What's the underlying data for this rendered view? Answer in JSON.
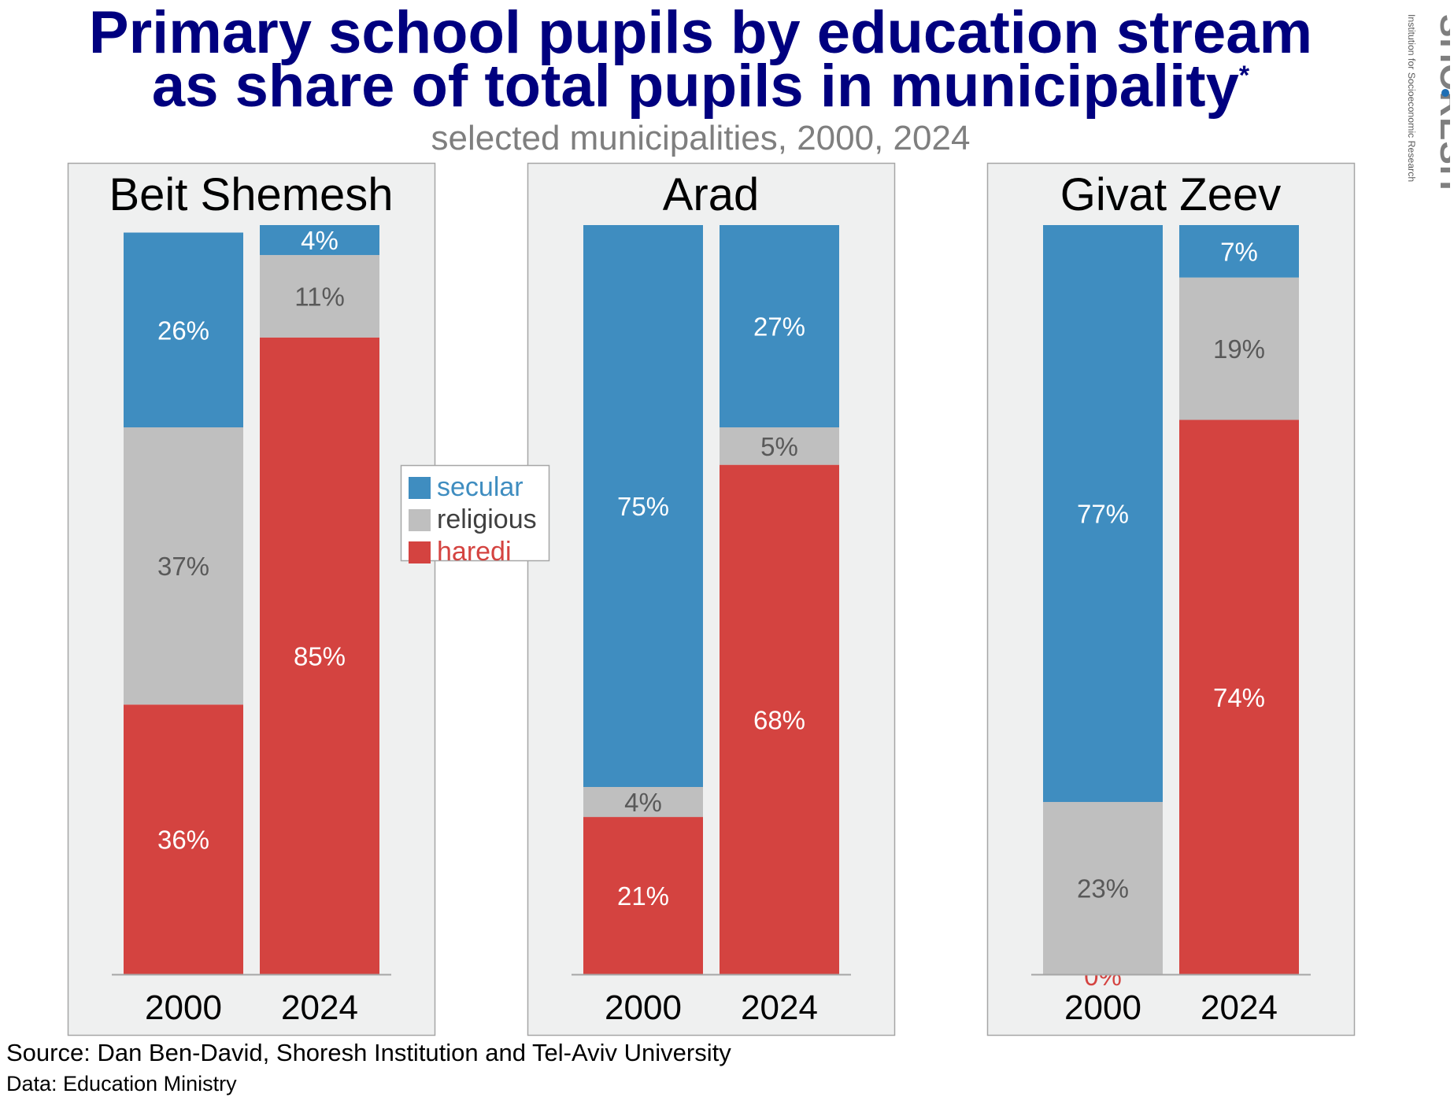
{
  "title_line1": "Primary school pupils by education stream",
  "title_line2": "as share of total pupils in municipality",
  "title_mark": "*",
  "subtitle": "selected municipalities, 2000, 2024",
  "logo": {
    "name": "SHORESH",
    "tagline": "Institution for Socioeconomic Research"
  },
  "source": "Source: Dan Ben-David, Shoresh Institution and Tel-Aviv University",
  "data_note": "Data: Education Ministry",
  "colors": {
    "secular": "#3f8dc0",
    "religious": "#bfbfbf",
    "haredi": "#d44340",
    "panel_bg": "#eff0f0",
    "panel_border": "#a6a6a6"
  },
  "chart_data": {
    "type": "bar",
    "stacked": true,
    "percent": true,
    "legend": {
      "placement": "between first and second panels",
      "entries": [
        "secular",
        "religious",
        "haredi"
      ]
    },
    "panels": [
      {
        "title": "Beit Shemesh",
        "categories": [
          "2000",
          "2024"
        ],
        "series": [
          {
            "name": "haredi",
            "values": [
              36,
              85
            ]
          },
          {
            "name": "religious",
            "values": [
              37,
              11
            ]
          },
          {
            "name": "secular",
            "values": [
              26,
              4
            ]
          }
        ]
      },
      {
        "title": "Arad",
        "categories": [
          "2000",
          "2024"
        ],
        "series": [
          {
            "name": "haredi",
            "values": [
              21,
              68
            ]
          },
          {
            "name": "religious",
            "values": [
              4,
              5
            ]
          },
          {
            "name": "secular",
            "values": [
              75,
              27
            ]
          }
        ]
      },
      {
        "title": "Givat Zeev",
        "categories": [
          "2000",
          "2024"
        ],
        "series": [
          {
            "name": "haredi",
            "values": [
              0,
              74
            ]
          },
          {
            "name": "religious",
            "values": [
              23,
              19
            ]
          },
          {
            "name": "secular",
            "values": [
              77,
              7
            ]
          }
        ]
      }
    ]
  }
}
